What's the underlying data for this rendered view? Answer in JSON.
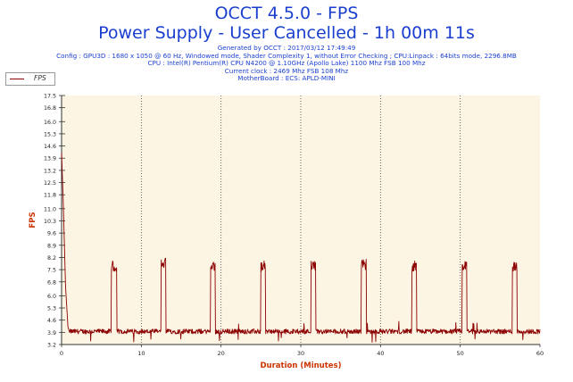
{
  "header": {
    "title": "OCCT 4.5.0 - FPS",
    "subtitle": "Power Supply - User Cancelled - 1h 00m 11s",
    "info_lines": [
      "Generated by OCCT : 2017/03/12 17:49:49",
      "Config : GPU3D : 1680 x 1050 @ 60 Hz, Windowed mode, Shader Complexity 1, without Error Checking ; CPU:Linpack : 64bits mode, 2296.8MB",
      "CPU : Intel(R) Pentium(R) CPU N4200 @ 1.10GHz (Apollo Lake) 1100 Mhz FSB 100 Mhz",
      "Current clock : 2469 Mhz FSB 108 Mhz",
      "MotherBoard : ECS: APLD-MINI"
    ]
  },
  "legend": {
    "label": "FPS"
  },
  "colors": {
    "line": "#8b0000",
    "plot_bg": "#fdf5e4",
    "title": "#1a3fcf",
    "axis_label": "#cc3300"
  },
  "chart_data": {
    "type": "line",
    "xlabel": "Duration (Minutes)",
    "ylabel": "FPS",
    "xlim": [
      0,
      60
    ],
    "ylim": [
      3.2,
      17.5
    ],
    "x_ticks": [
      0,
      10,
      20,
      30,
      40,
      50,
      60
    ],
    "y_ticks": [
      3.2,
      3.9,
      4.6,
      5.3,
      6.0,
      6.8,
      7.5,
      8.2,
      8.9,
      9.6,
      10.3,
      11.0,
      11.8,
      12.5,
      13.2,
      13.9,
      14.6,
      15.3,
      16.0,
      16.8,
      17.5
    ],
    "grid": "vertical dotted",
    "legend_position": "top-left",
    "series": [
      {
        "name": "FPS",
        "baseline": 3.95,
        "startup": [
          [
            0.0,
            14.2
          ],
          [
            0.2,
            11.5
          ],
          [
            0.5,
            6.5
          ],
          [
            0.8,
            4.2
          ],
          [
            1.0,
            3.9
          ]
        ],
        "spikes": [
          {
            "start": 6.2,
            "end": 6.9,
            "value": 8.0
          },
          {
            "start": 12.5,
            "end": 13.1,
            "value": 8.2
          },
          {
            "start": 18.7,
            "end": 19.3,
            "value": 8.0
          },
          {
            "start": 25.0,
            "end": 25.6,
            "value": 8.0
          },
          {
            "start": 31.3,
            "end": 31.9,
            "value": 8.0
          },
          {
            "start": 37.6,
            "end": 38.2,
            "value": 8.1
          },
          {
            "start": 43.9,
            "end": 44.5,
            "value": 8.0
          },
          {
            "start": 50.2,
            "end": 50.8,
            "value": 8.0
          },
          {
            "start": 56.5,
            "end": 57.1,
            "value": 8.0
          }
        ]
      }
    ]
  }
}
